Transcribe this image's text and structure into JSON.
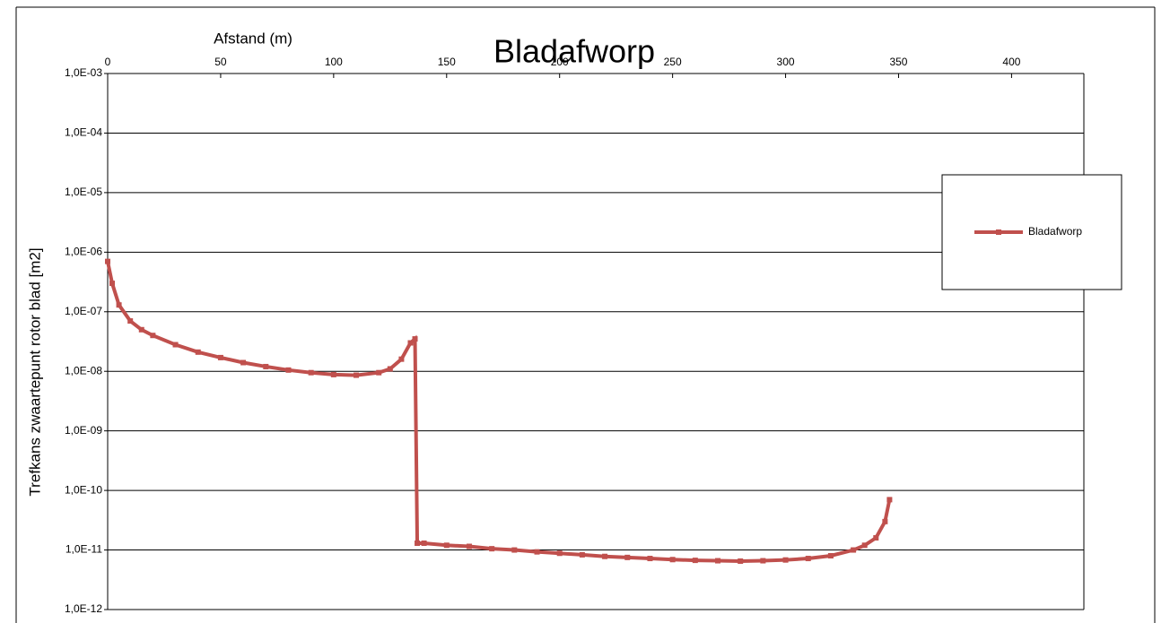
{
  "chart_data": {
    "type": "line",
    "title": "Bladafworp",
    "xlabel": "Afstand (m)",
    "ylabel": "Trefkans  zwaartepunt  rotor blad [m2]",
    "x": [
      0,
      2,
      5,
      10,
      15,
      20,
      30,
      40,
      50,
      60,
      70,
      80,
      90,
      100,
      110,
      120,
      125,
      130,
      134,
      136,
      137,
      140,
      150,
      160,
      170,
      180,
      190,
      200,
      210,
      220,
      230,
      240,
      250,
      260,
      270,
      280,
      290,
      300,
      310,
      320,
      330,
      335,
      340,
      344,
      346
    ],
    "series": [
      {
        "name": "Bladafworp",
        "color": "#c0504d",
        "values": [
          7e-07,
          3e-07,
          1.3e-07,
          7e-08,
          5e-08,
          4e-08,
          2.8e-08,
          2.1e-08,
          1.7e-08,
          1.4e-08,
          1.2e-08,
          1.05e-08,
          9.5e-09,
          8.8e-09,
          8.6e-09,
          9.5e-09,
          1.1e-08,
          1.6e-08,
          3e-08,
          3.5e-08,
          1.3e-11,
          1.3e-11,
          1.2e-11,
          1.15e-11,
          1.05e-11,
          1e-11,
          9.3e-12,
          8.8e-12,
          8.3e-12,
          7.8e-12,
          7.5e-12,
          7.2e-12,
          6.9e-12,
          6.7e-12,
          6.6e-12,
          6.5e-12,
          6.6e-12,
          6.8e-12,
          7.2e-12,
          8e-12,
          1e-11,
          1.2e-11,
          1.6e-11,
          3e-11,
          7e-11
        ]
      }
    ],
    "xlim": [
      0,
      432
    ],
    "xticks": [
      0,
      50,
      100,
      150,
      200,
      250,
      300,
      350,
      400
    ],
    "ylim": [
      1e-12,
      0.001
    ],
    "yscale": "log",
    "yticks": [
      {
        "value": 1e-12,
        "label": "1,0E-12"
      },
      {
        "value": 1e-11,
        "label": "1,0E-11"
      },
      {
        "value": 1e-10,
        "label": "1,0E-10"
      },
      {
        "value": 1e-09,
        "label": "1,0E-09"
      },
      {
        "value": 1e-08,
        "label": "1,0E-08"
      },
      {
        "value": 1e-07,
        "label": "1,0E-07"
      },
      {
        "value": 1e-06,
        "label": "1,0E-06"
      },
      {
        "value": 1e-05,
        "label": "1,0E-05"
      },
      {
        "value": 0.0001,
        "label": "1,0E-04"
      },
      {
        "value": 0.001,
        "label": "1,0E-03"
      }
    ],
    "grid": true,
    "legend": "right"
  }
}
